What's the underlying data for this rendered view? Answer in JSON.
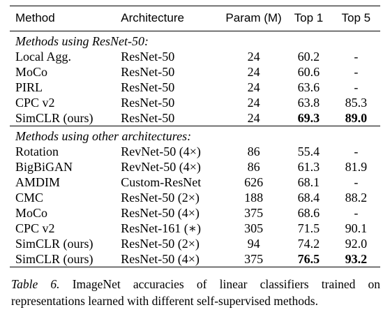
{
  "table": {
    "headers": [
      "Method",
      "Architecture",
      "Param (M)",
      "Top 1",
      "Top 5"
    ],
    "section1_title": "Methods using ResNet-50:",
    "section1_rows": [
      [
        "Local Agg.",
        "ResNet-50",
        "24",
        "60.2",
        "-"
      ],
      [
        "MoCo",
        "ResNet-50",
        "24",
        "60.6",
        "-"
      ],
      [
        "PIRL",
        "ResNet-50",
        "24",
        "63.6",
        "-"
      ],
      [
        "CPC v2",
        "ResNet-50",
        "24",
        "63.8",
        "85.3"
      ],
      [
        "SimCLR (ours)",
        "ResNet-50",
        "24",
        "69.3",
        "89.0"
      ]
    ],
    "section2_title": "Methods using other architectures:",
    "section2_rows": [
      [
        "Rotation",
        "RevNet-50 (4×)",
        "86",
        "55.4",
        "-"
      ],
      [
        "BigBiGAN",
        "RevNet-50 (4×)",
        "86",
        "61.3",
        "81.9"
      ],
      [
        "AMDIM",
        "Custom-ResNet",
        "626",
        "68.1",
        "-"
      ],
      [
        "CMC",
        "ResNet-50 (2×)",
        "188",
        "68.4",
        "88.2"
      ],
      [
        "MoCo",
        "ResNet-50 (4×)",
        "375",
        "68.6",
        "-"
      ],
      [
        "CPC v2",
        "ResNet-161 (∗)",
        "305",
        "71.5",
        "90.1"
      ],
      [
        "SimCLR (ours)",
        "ResNet-50 (2×)",
        "94",
        "74.2",
        "92.0"
      ],
      [
        "SimCLR (ours)",
        "ResNet-50 (4×)",
        "375",
        "76.5",
        "93.2"
      ]
    ]
  },
  "caption": {
    "label": "Table 6.",
    "text": "ImageNet accuracies of linear classifiers trained on representations learned with different self-supervised methods."
  }
}
